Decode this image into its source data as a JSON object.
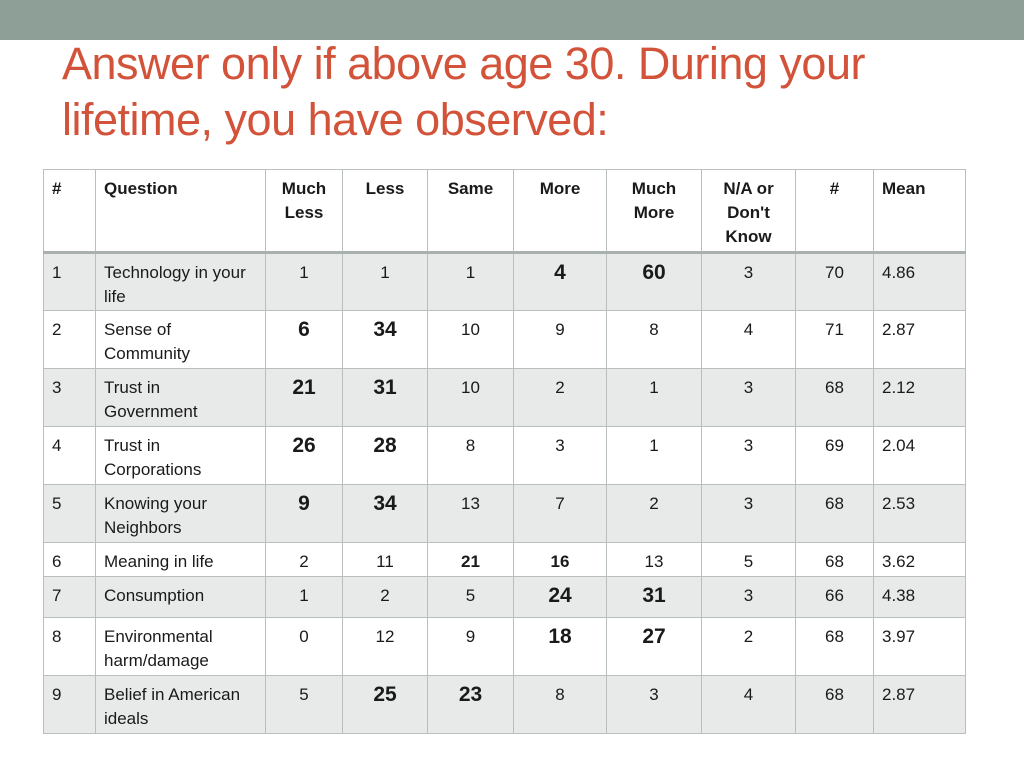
{
  "title": "Answer only if above age 30. During your lifetime, you have observed:",
  "table": {
    "headers": [
      "#",
      "Question",
      "Much Less",
      "Less",
      "Same",
      "More",
      "Much More",
      "N/A or Don't Know",
      "#",
      "Mean"
    ],
    "rows": [
      {
        "num": "1",
        "question": "Technology in your life",
        "much_less": "1",
        "less": "1",
        "same": "1",
        "more": "4",
        "much_more": "60",
        "na": "3",
        "count": "70",
        "mean": "4.86"
      },
      {
        "num": "2",
        "question": "Sense of Community",
        "much_less": "6",
        "less": "34",
        "same": "10",
        "more": "9",
        "much_more": "8",
        "na": "4",
        "count": "71",
        "mean": "2.87"
      },
      {
        "num": "3",
        "question": "Trust in Government",
        "much_less": "21",
        "less": "31",
        "same": "10",
        "more": "2",
        "much_more": "1",
        "na": "3",
        "count": "68",
        "mean": "2.12"
      },
      {
        "num": "4",
        "question": "Trust in Corporations",
        "much_less": "26",
        "less": "28",
        "same": "8",
        "more": "3",
        "much_more": "1",
        "na": "3",
        "count": "69",
        "mean": "2.04"
      },
      {
        "num": "5",
        "question": "Knowing your Neighbors",
        "much_less": "9",
        "less": "34",
        "same": "13",
        "more": "7",
        "much_more": "2",
        "na": "3",
        "count": "68",
        "mean": "2.53"
      },
      {
        "num": "6",
        "question": "Meaning in life",
        "much_less": "2",
        "less": "11",
        "same": "21",
        "more": "16",
        "much_more": "13",
        "na": "5",
        "count": "68",
        "mean": "3.62"
      },
      {
        "num": "7",
        "question": "Consumption",
        "much_less": "1",
        "less": "2",
        "same": "5",
        "more": "24",
        "much_more": "31",
        "na": "3",
        "count": "66",
        "mean": "4.38"
      },
      {
        "num": "8",
        "question": "Environmental harm/damage",
        "much_less": "0",
        "less": "12",
        "same": "9",
        "more": "18",
        "much_more": "27",
        "na": "2",
        "count": "68",
        "mean": "3.97"
      },
      {
        "num": "9",
        "question": "Belief in American ideals",
        "much_less": "5",
        "less": "25",
        "same": "23",
        "more": "8",
        "much_more": "3",
        "na": "4",
        "count": "68",
        "mean": "2.87"
      }
    ]
  },
  "colors": {
    "title": "#d2533a",
    "top_bar": "#8e9f98",
    "row_shade": "#e8e9e9"
  }
}
